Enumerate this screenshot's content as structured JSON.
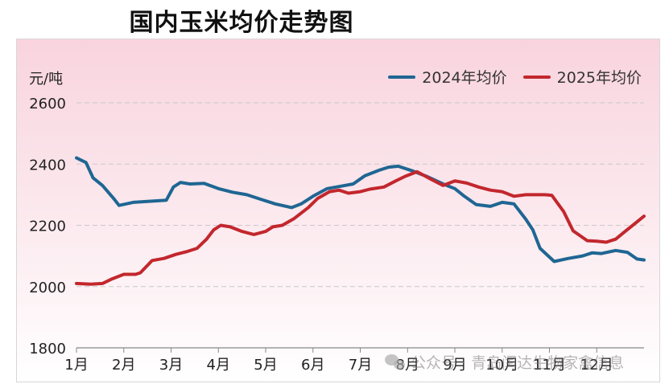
{
  "chart_data": {
    "type": "line",
    "title": "国内玉米均价走势图",
    "ylabel": "元/吨",
    "ylim": [
      1800,
      2600
    ],
    "yticks": [
      1800,
      2000,
      2200,
      2400,
      2600
    ],
    "xlim": [
      0,
      12
    ],
    "xticks": [
      0,
      1,
      2,
      3,
      4,
      5,
      6,
      7,
      8,
      9,
      10,
      11
    ],
    "xtick_labels": [
      "1月",
      "2月",
      "3月",
      "4月",
      "5月",
      "6月",
      "7月",
      "8月",
      "9月",
      "10月",
      "11月",
      "12月"
    ],
    "grid": "horizontal-dashed",
    "legend_position": "top-right",
    "series": [
      {
        "name": "2024年均价",
        "color": "#1f6693",
        "x": [
          0,
          0.2,
          0.35,
          0.55,
          0.8,
          0.9,
          1.2,
          1.5,
          1.9,
          2.05,
          2.2,
          2.4,
          2.7,
          3.0,
          3.3,
          3.6,
          3.9,
          4.2,
          4.55,
          4.75,
          5.0,
          5.3,
          5.6,
          5.85,
          6.1,
          6.4,
          6.6,
          6.8,
          7.1,
          7.4,
          7.75,
          8.0,
          8.2,
          8.45,
          8.75,
          9.0,
          9.25,
          9.5,
          9.65,
          9.8,
          10.1,
          10.4,
          10.7,
          10.9,
          11.1,
          11.4,
          11.65,
          11.85,
          12.0
        ],
        "values": [
          2420,
          2405,
          2355,
          2330,
          2285,
          2265,
          2275,
          2278,
          2282,
          2325,
          2340,
          2335,
          2337,
          2320,
          2308,
          2300,
          2285,
          2270,
          2258,
          2270,
          2295,
          2320,
          2328,
          2335,
          2362,
          2380,
          2390,
          2393,
          2378,
          2360,
          2335,
          2320,
          2295,
          2268,
          2262,
          2275,
          2270,
          2220,
          2185,
          2125,
          2082,
          2092,
          2100,
          2110,
          2108,
          2118,
          2112,
          2090,
          2087
        ]
      },
      {
        "name": "2025年均价",
        "color": "#c2272d",
        "x": [
          0,
          0.3,
          0.55,
          0.75,
          1.0,
          1.25,
          1.35,
          1.6,
          1.85,
          2.1,
          2.35,
          2.55,
          2.75,
          2.9,
          3.05,
          3.25,
          3.5,
          3.75,
          4.0,
          4.15,
          4.35,
          4.6,
          4.9,
          5.1,
          5.35,
          5.55,
          5.75,
          6.0,
          6.2,
          6.5,
          6.75,
          6.95,
          7.2,
          7.5,
          7.75,
          8.0,
          8.25,
          8.5,
          8.75,
          9.0,
          9.25,
          9.5,
          9.7,
          9.9,
          10.05,
          10.3,
          10.5,
          10.8,
          11.0,
          11.2,
          11.4,
          11.6,
          11.8,
          12.0
        ],
        "values": [
          2010,
          2008,
          2010,
          2025,
          2040,
          2040,
          2045,
          2085,
          2092,
          2105,
          2115,
          2125,
          2155,
          2185,
          2200,
          2195,
          2180,
          2170,
          2180,
          2195,
          2200,
          2222,
          2258,
          2288,
          2310,
          2315,
          2305,
          2310,
          2318,
          2325,
          2345,
          2360,
          2375,
          2350,
          2330,
          2345,
          2338,
          2325,
          2315,
          2310,
          2295,
          2300,
          2300,
          2300,
          2298,
          2245,
          2182,
          2150,
          2148,
          2145,
          2155,
          2180,
          2205,
          2230
        ]
      }
    ]
  },
  "watermark": {
    "text": "公众号 · 青岛闰达生物家禽信息"
  }
}
